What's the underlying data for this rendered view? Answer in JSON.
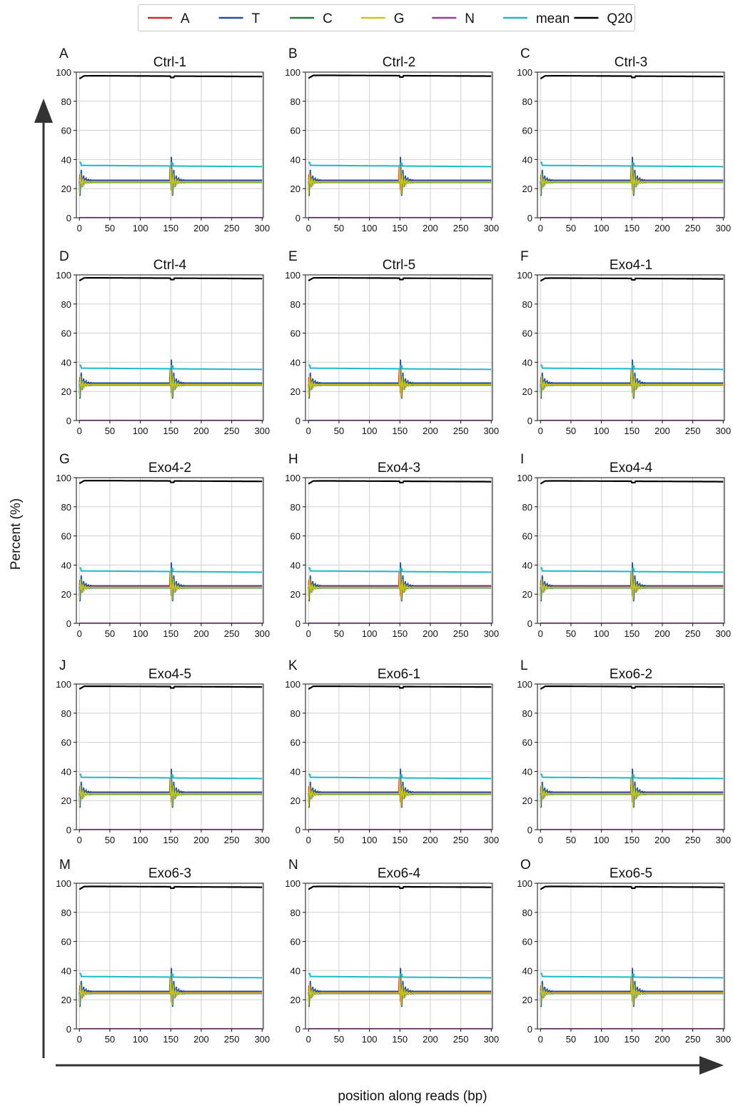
{
  "chart_data": {
    "type": "line",
    "ylabel": "Percent (%)",
    "xlabel": "position along reads (bp)",
    "xlim": [
      -5,
      302
    ],
    "ylim": [
      0,
      100
    ],
    "xticks": [
      0,
      50,
      100,
      150,
      200,
      250,
      300
    ],
    "yticks": [
      0,
      20,
      40,
      60,
      80,
      100
    ],
    "grid": true,
    "legend_placement": "top-center",
    "legend": [
      {
        "name": "A",
        "color": "#d62728"
      },
      {
        "name": "T",
        "color": "#1f4fa8"
      },
      {
        "name": "C",
        "color": "#1b7f3a"
      },
      {
        "name": "G",
        "color": "#c8c814"
      },
      {
        "name": "N",
        "color": "#a235a8"
      },
      {
        "name": "mean",
        "color": "#1fb8c8"
      },
      {
        "name": "Q20",
        "color": "#000000"
      }
    ],
    "panels": [
      {
        "letter": "A",
        "title": "Ctrl-1",
        "q20": 97.5,
        "mean": 36,
        "base": 25
      },
      {
        "letter": "B",
        "title": "Ctrl-2",
        "q20": 97.8,
        "mean": 36,
        "base": 25
      },
      {
        "letter": "C",
        "title": "Ctrl-3",
        "q20": 97.5,
        "mean": 36,
        "base": 25
      },
      {
        "letter": "D",
        "title": "Ctrl-4",
        "q20": 98,
        "mean": 36,
        "base": 25
      },
      {
        "letter": "E",
        "title": "Ctrl-5",
        "q20": 98,
        "mean": 36,
        "base": 25
      },
      {
        "letter": "F",
        "title": "Exo4-1",
        "q20": 97.8,
        "mean": 36,
        "base": 25
      },
      {
        "letter": "G",
        "title": "Exo4-2",
        "q20": 98,
        "mean": 36,
        "base": 25
      },
      {
        "letter": "H",
        "title": "Exo4-3",
        "q20": 97.8,
        "mean": 36,
        "base": 25
      },
      {
        "letter": "I",
        "title": "Exo4-4",
        "q20": 97.8,
        "mean": 36,
        "base": 25
      },
      {
        "letter": "J",
        "title": "Exo4-5",
        "q20": 98.5,
        "mean": 36,
        "base": 25
      },
      {
        "letter": "K",
        "title": "Exo6-1",
        "q20": 98.5,
        "mean": 36,
        "base": 25
      },
      {
        "letter": "L",
        "title": "Exo6-2",
        "q20": 98.5,
        "mean": 36,
        "base": 25
      },
      {
        "letter": "M",
        "title": "Exo6-3",
        "q20": 97.8,
        "mean": 36,
        "base": 25
      },
      {
        "letter": "N",
        "title": "Exo6-4",
        "q20": 97.8,
        "mean": 36,
        "base": 25
      },
      {
        "letter": "O",
        "title": "Exo6-5",
        "q20": 97.8,
        "mean": 36,
        "base": 25
      }
    ]
  }
}
